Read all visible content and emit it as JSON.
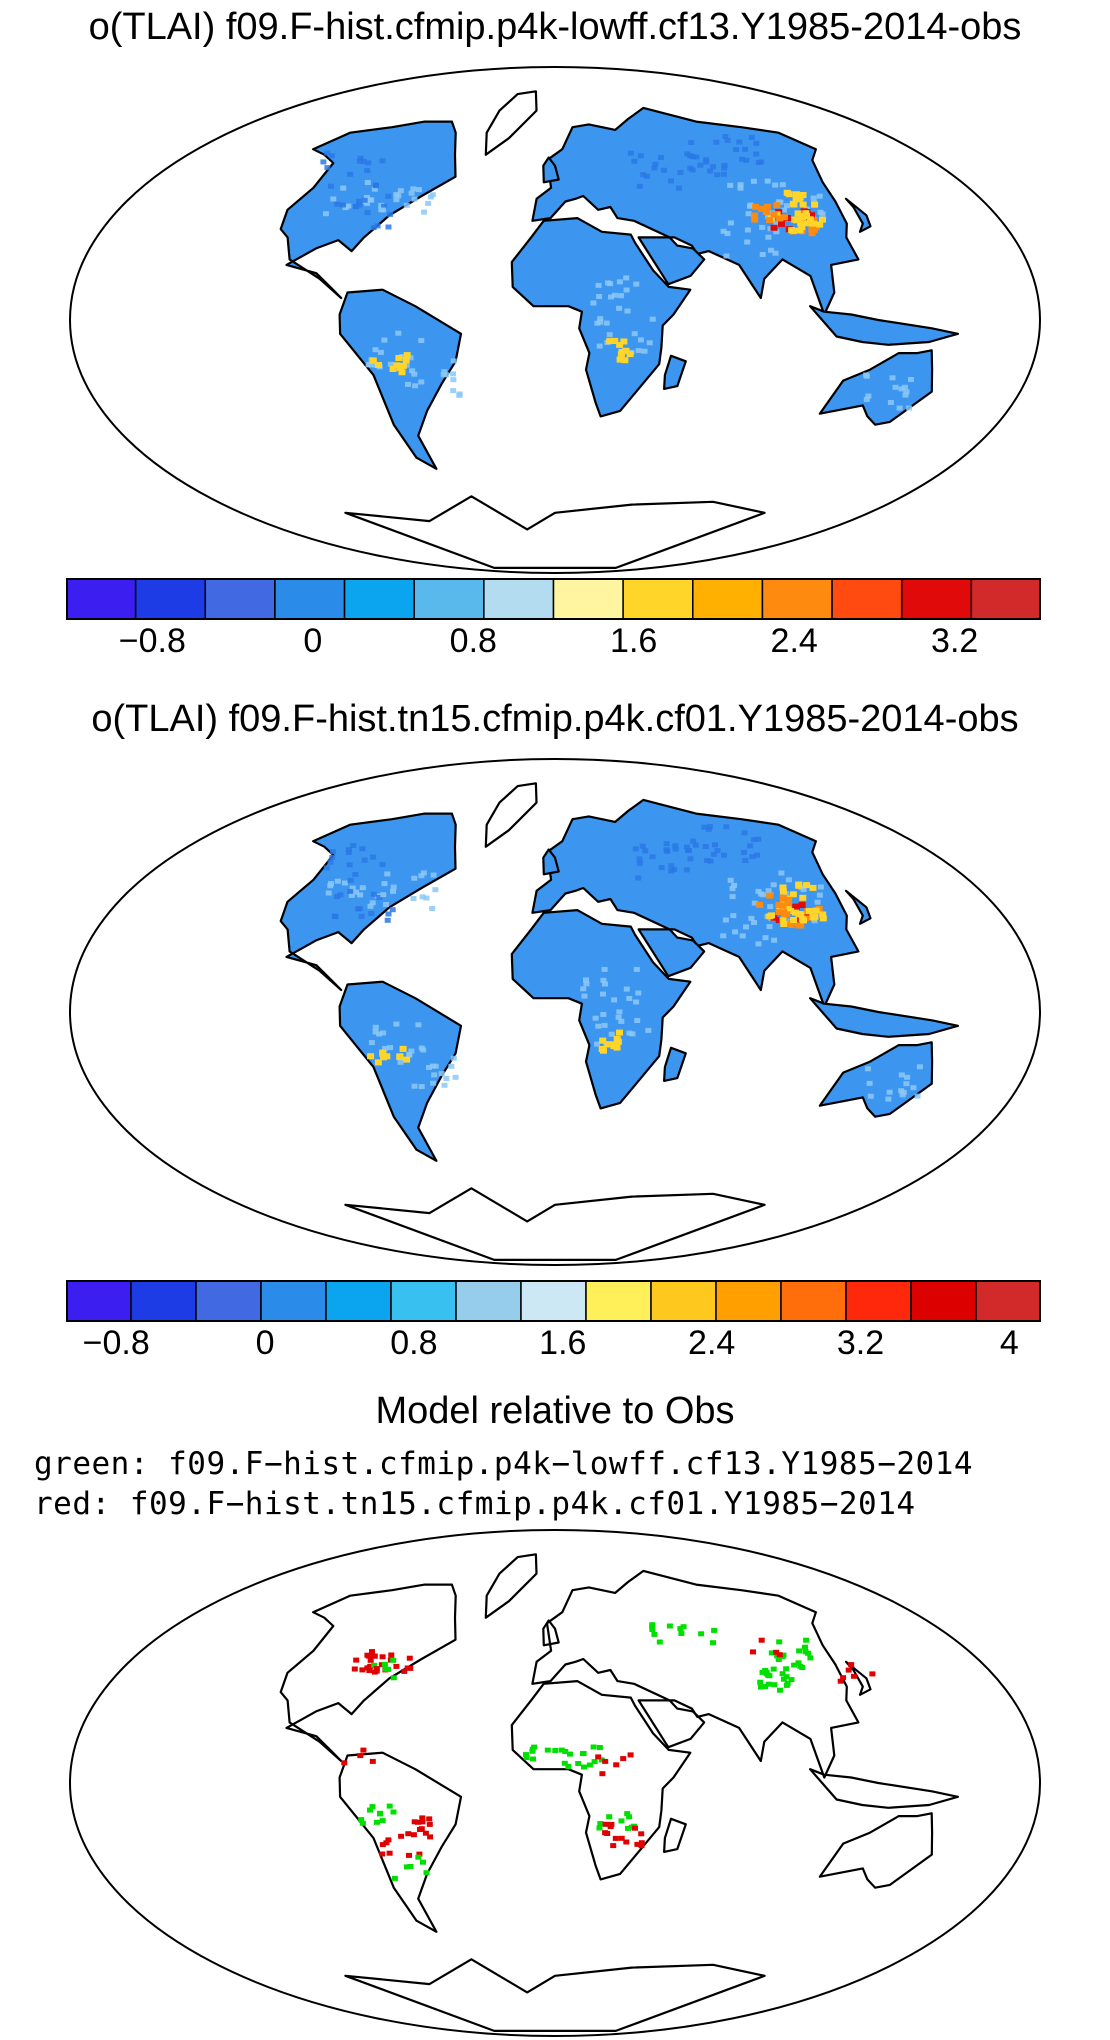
{
  "panel1": {
    "title": "o(TLAI) f09.F-hist.cfmip.p4k-lowff.cf13.Y1985-2014-obs",
    "colorbar": {
      "colors": [
        "#3c1ef0",
        "#1e3ce6",
        "#4169e1",
        "#2a8be8",
        "#0aa5ee",
        "#5ab9ec",
        "#b4dcf0",
        "#fff5a0",
        "#ffd52a",
        "#ffb000",
        "#ff8a10",
        "#ff4a10",
        "#e00a0a",
        "#d22a2a"
      ],
      "tick_labels": [
        "−0.8",
        "0",
        "0.8",
        "1.6",
        "2.4",
        "3.2"
      ],
      "tick_values": [
        -0.8,
        0,
        0.8,
        1.6,
        2.4,
        3.2
      ],
      "boundaries": [
        -1.2,
        -1.0,
        -0.8,
        -0.6,
        -0.4,
        -0.2,
        0,
        0.2,
        0.4,
        0.6,
        0.8,
        1.0,
        1.2,
        1.4,
        1.6,
        1.8,
        2.0,
        2.2,
        2.4,
        2.6,
        2.8,
        3.0,
        3.2
      ]
    }
  },
  "panel2": {
    "title": "o(TLAI) f09.F-hist.tn15.cfmip.p4k.cf01.Y1985-2014-obs",
    "colorbar": {
      "colors": [
        "#3c1ef0",
        "#1e3ce6",
        "#4169e1",
        "#2a8be8",
        "#0aa5ee",
        "#38c0f0",
        "#96cdeb",
        "#cde8f5",
        "#fff05a",
        "#ffc81e",
        "#ffa000",
        "#ff6e0a",
        "#ff280a",
        "#dc0000",
        "#d22a2a"
      ],
      "tick_labels": [
        "−0.8",
        "0",
        "0.8",
        "1.6",
        "2.4",
        "3.2",
        "4"
      ],
      "tick_values": [
        -0.8,
        0,
        0.8,
        1.6,
        2.4,
        3.2,
        4
      ]
    }
  },
  "panel3": {
    "title": "Model relative to Obs",
    "legend_green": "green: f09.F−hist.cfmip.p4k−lowff.cf13.Y1985−2014",
    "legend_red": "red: f09.F−hist.tn15.cfmip.p4k.cf01.Y1985−2014"
  },
  "map_colors": {
    "land_base": "#3c96f0",
    "land_dark": "#2a78e6",
    "land_light": "#8cc8f5",
    "hot_yellow": "#ffd52a",
    "hot_orange": "#ff8a10",
    "hot_red": "#e00a0a",
    "coast": "#000000",
    "green": "#00e000",
    "red": "#e00000"
  }
}
